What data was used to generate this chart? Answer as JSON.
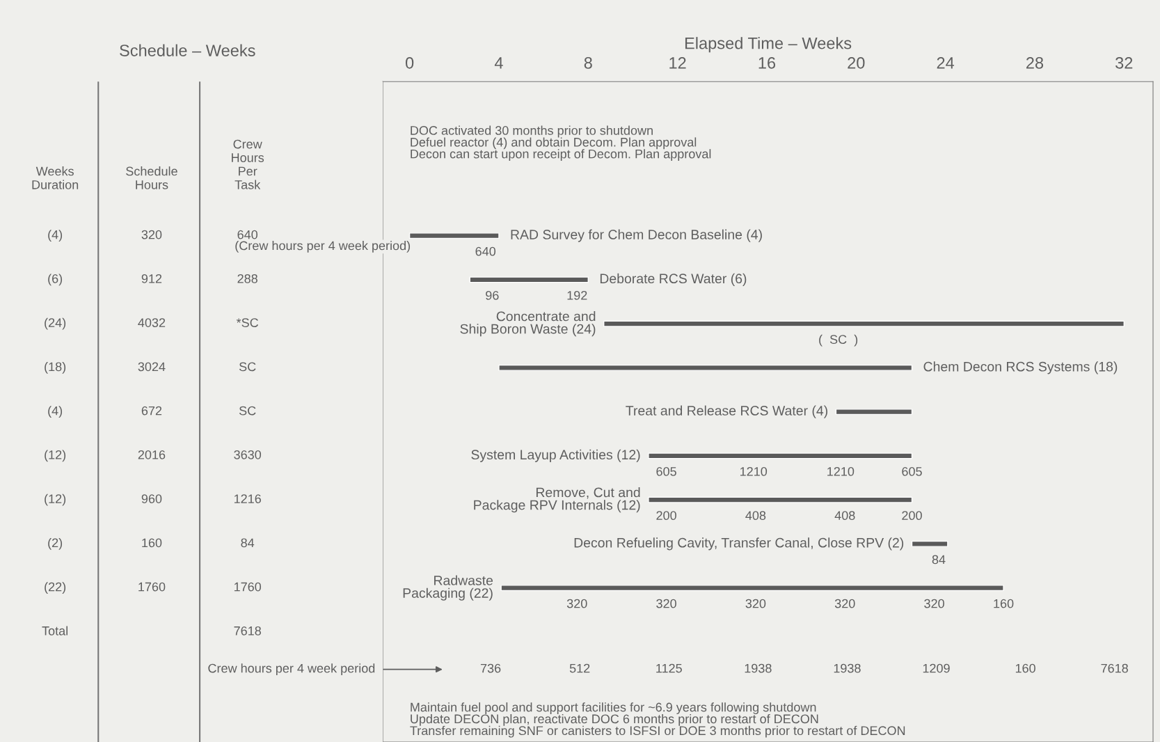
{
  "chart_data": [
    {
      "type": "other",
      "title": "Schedule – Weeks",
      "categories": [
        "Weeks\nDuration",
        "Schedule\nHours",
        "Crew\nHours\nPer\nTask"
      ],
      "cell_labels": [
        [
          "(4)",
          "320",
          "640"
        ],
        [
          "(6)",
          "912",
          "288"
        ],
        [
          "(24)",
          "4032",
          "*SC"
        ],
        [
          "(18)",
          "3024",
          "SC"
        ],
        [
          "(4)",
          "672",
          "SC"
        ],
        [
          "(12)",
          "2016",
          "3630"
        ],
        [
          "(12)",
          "960",
          "1216"
        ],
        [
          "(2)",
          "160",
          "84"
        ],
        [
          "(22)",
          "1760",
          "1760"
        ],
        [
          "Total",
          null,
          "7618"
        ]
      ],
      "annotations": [
        "(Crew hours per 4 week period)",
        "Crew hours per 4 week period"
      ]
    },
    {
      "type": "bar",
      "orientation": "horizontal",
      "xlabel": "Elapsed Time – Weeks",
      "color": "#5a5a5a",
      "tick_labels": "x",
      "subtitle": "DOC activated 30 months prior to shutdown\nDefuel reactor (4) and obtain Decom. Plan approval\nDecon can start upon receipt of Decom. Plan approval",
      "categories": [
        null,
        null,
        null,
        "RAD Survey for Chem Decon Baseline (4)",
        "Deborate RCS Water (6)",
        "Concentrate and\nShip Boron Waste (24)",
        "Chem Decon RCS Systems (18)",
        "Treat and Release RCS Water (4)",
        "System Layup Activities (12)",
        "Remove, Cut and\nPackage RPV Internals (12)",
        "Decon Refueling Cavity, Transfer Canal, Close RPV (2)",
        "Radwaste\nPackaging (22)",
        null,
        null,
        null
      ],
      "base": [
        null,
        null,
        null,
        0,
        2.7,
        8.7,
        4,
        19.1,
        10.7,
        10.7,
        22.5,
        4.1,
        null,
        null,
        null
      ],
      "values": [
        null,
        null,
        null,
        4,
        5.3,
        23.3,
        18.5,
        3.4,
        11.8,
        11.8,
        1.6,
        22.5,
        null,
        null,
        null
      ],
      "xlim": [
        -1.2,
        33.3
      ],
      "xticks": [
        0,
        4,
        8,
        12,
        16,
        20,
        24,
        28,
        32
      ],
      "annotations": [
        {
          "text": "640",
          "x": 3.4,
          "y": "RAD Survey for Chem Decon Baseline (4)"
        },
        {
          "text": "96",
          "x": 3.7,
          "y": "Deborate RCS Water (6)"
        },
        {
          "text": "192",
          "x": 7.5,
          "y": "Deborate RCS Water (6)"
        },
        {
          "text": "(  SC  )",
          "x": 19.2,
          "y": "Concentrate and\nShip Boron Waste (24)"
        },
        {
          "text": "605",
          "x": 11.5,
          "y": "System Layup Activities (12)"
        },
        {
          "text": "1210",
          "x": 15.4,
          "y": "System Layup Activities (12)"
        },
        {
          "text": "1210",
          "x": 19.3,
          "y": "System Layup Activities (12)"
        },
        {
          "text": "605",
          "x": 22.5,
          "y": "System Layup Activities (12)"
        },
        {
          "text": "200",
          "x": 11.5,
          "y": "Remove, Cut and\nPackage RPV Internals (12)"
        },
        {
          "text": "408",
          "x": 15.5,
          "y": "Remove, Cut and\nPackage RPV Internals (12)"
        },
        {
          "text": "408",
          "x": 19.5,
          "y": "Remove, Cut and\nPackage RPV Internals (12)"
        },
        {
          "text": "200",
          "x": 22.5,
          "y": "Remove, Cut and\nPackage RPV Internals (12)"
        },
        {
          "text": "84",
          "x": 23.7,
          "y": "Decon Refueling Cavity, Transfer Canal, Close RPV (2)"
        },
        {
          "text": "320",
          "x": 7.5,
          "y": "Radwaste\nPackaging (22)"
        },
        {
          "text": "320",
          "x": 11.5,
          "y": "Radwaste\nPackaging (22)"
        },
        {
          "text": "320",
          "x": 15.5,
          "y": "Radwaste\nPackaging (22)"
        },
        {
          "text": "320",
          "x": 19.5,
          "y": "Radwaste\nPackaging (22)"
        },
        {
          "text": "320",
          "x": 23.5,
          "y": "Radwaste\nPackaging (22)"
        },
        {
          "text": "160",
          "x": 26.6,
          "y": "Radwaste\nPackaging (22)"
        },
        "736 512 1125 1938 1938 1209 160 7618",
        "Maintain fuel pool and support facilities for ~6.9 years following shutdown\nUpdate DECON plan, reactivate DOC 6 months prior to restart of DECON\nTransfer remaining SNF or canisters to ISFSI or DOE 3 months prior to restart of DECON"
      ]
    }
  ]
}
